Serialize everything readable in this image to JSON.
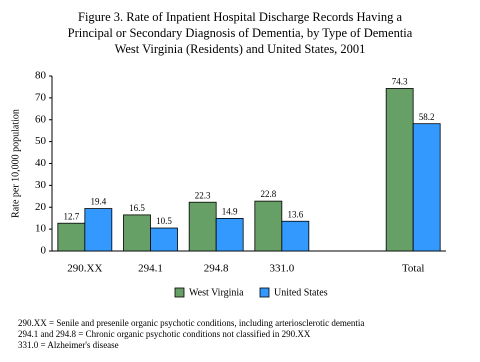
{
  "chart_data": {
    "type": "bar",
    "title": [
      "Figure 3.  Rate of Inpatient Hospital Discharge Records Having a",
      "Principal or Secondary Diagnosis of Dementia, by Type of Dementia",
      "West Virginia (Residents) and United States, 2001"
    ],
    "y_label": "Rate per 10,000 population",
    "categories": [
      "290.XX",
      "294.1",
      "294.8",
      "331.0",
      null,
      "Total"
    ],
    "series": [
      {
        "name": "West Virginia",
        "color": "#66a066",
        "values": [
          12.7,
          16.5,
          22.3,
          22.8,
          null,
          74.3
        ]
      },
      {
        "name": "United States",
        "color": "#3399ff",
        "values": [
          19.4,
          10.5,
          14.9,
          13.6,
          null,
          58.2
        ]
      }
    ],
    "ylim": [
      0,
      80
    ],
    "yticks": [
      0,
      10,
      20,
      30,
      40,
      50,
      60,
      70,
      80
    ],
    "grid": false,
    "legend": "bottom",
    "notes": [
      "290.XX = Senile and presenile organic psychotic conditions, including arteriosclerotic dementia",
      "294.1 and 294.8 = Chronic organic psychotic conditions not classified in 290.XX",
      "331.0 = Alzheimer's disease"
    ]
  }
}
